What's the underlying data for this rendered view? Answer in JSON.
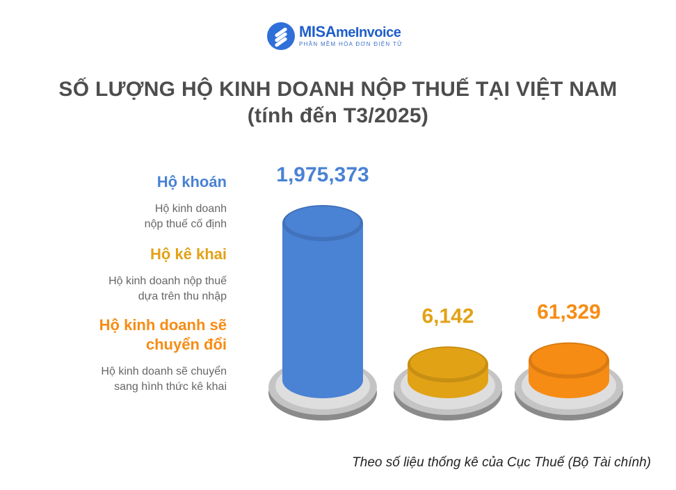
{
  "logo": {
    "brand_main": "MISA",
    "brand_sub": "meInvoice",
    "tagline": "PHẦN MỀM HÓA ĐƠN ĐIỆN TỬ",
    "color": "#2f6fd8"
  },
  "chart_data": {
    "type": "bar",
    "title": "SỐ LƯỢNG HỘ KINH DOANH NỘP THUẾ TẠI VIỆT NAM",
    "subtitle": "(tính đến T3/2025)",
    "categories": [
      {
        "name": "Hộ khoán",
        "description_lines": [
          "Hộ kinh doanh",
          "nộp thuế cố định"
        ],
        "color": "#4a82d4"
      },
      {
        "name": "Hộ kê khai",
        "description_lines": [
          "Hộ kinh doanh nộp thuế",
          "dựa trên thu nhập"
        ],
        "color": "#e2a216"
      },
      {
        "name_lines": [
          "Hộ kinh doanh sẽ",
          "chuyển đổi"
        ],
        "description_lines": [
          "Hộ kinh doanh sẽ chuyển",
          "sang hình thức kê khai"
        ],
        "color": "#f78c14"
      }
    ],
    "values": [
      1975373,
      6142,
      61329
    ],
    "value_labels": [
      "1,975,373",
      "6,142",
      "61,329"
    ],
    "label_colors": [
      "#4a82d4",
      "#e2a216",
      "#f78c14"
    ],
    "source": "Theo số liệu thống kê của Cục Thuế (Bộ Tài chính)"
  }
}
